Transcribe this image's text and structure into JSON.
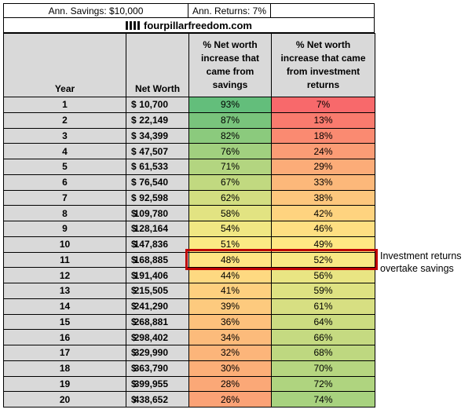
{
  "top_bar": {
    "savings_label": "Ann. Savings: $10,000",
    "returns_label": "Ann. Returns: 7%"
  },
  "brand": {
    "site": "fourpillarfreedom.com"
  },
  "colors": {
    "header_bg": "#D9D9D9",
    "grid": "#000000",
    "highlight_border": "#C00000"
  },
  "chart_data": {
    "type": "table",
    "header_labels": [
      "Ann. Savings: $10,000",
      "Ann. Returns: 7%"
    ],
    "source": "fourpillarfreedom.com",
    "currency_symbol": "$",
    "columns": [
      "Year",
      "Net Worth",
      "% Net worth increase that came from savings",
      "% Net worth increase that came from investment returns"
    ],
    "rows": [
      {
        "year": "1",
        "net_worth": "10,700",
        "savings_pct": 93,
        "returns_pct": 7
      },
      {
        "year": "2",
        "net_worth": "22,149",
        "savings_pct": 87,
        "returns_pct": 13
      },
      {
        "year": "3",
        "net_worth": "34,399",
        "savings_pct": 82,
        "returns_pct": 18
      },
      {
        "year": "4",
        "net_worth": "47,507",
        "savings_pct": 76,
        "returns_pct": 24
      },
      {
        "year": "5",
        "net_worth": "61,533",
        "savings_pct": 71,
        "returns_pct": 29
      },
      {
        "year": "6",
        "net_worth": "76,540",
        "savings_pct": 67,
        "returns_pct": 33
      },
      {
        "year": "7",
        "net_worth": "92,598",
        "savings_pct": 62,
        "returns_pct": 38
      },
      {
        "year": "8",
        "net_worth": "109,780",
        "savings_pct": 58,
        "returns_pct": 42
      },
      {
        "year": "9",
        "net_worth": "128,164",
        "savings_pct": 54,
        "returns_pct": 46
      },
      {
        "year": "10",
        "net_worth": "147,836",
        "savings_pct": 51,
        "returns_pct": 49
      },
      {
        "year": "11",
        "net_worth": "168,885",
        "savings_pct": 48,
        "returns_pct": 52
      },
      {
        "year": "12",
        "net_worth": "191,406",
        "savings_pct": 44,
        "returns_pct": 56
      },
      {
        "year": "13",
        "net_worth": "215,505",
        "savings_pct": 41,
        "returns_pct": 59
      },
      {
        "year": "14",
        "net_worth": "241,290",
        "savings_pct": 39,
        "returns_pct": 61
      },
      {
        "year": "15",
        "net_worth": "268,881",
        "savings_pct": 36,
        "returns_pct": 64
      },
      {
        "year": "16",
        "net_worth": "298,402",
        "savings_pct": 34,
        "returns_pct": 66
      },
      {
        "year": "17",
        "net_worth": "329,990",
        "savings_pct": 32,
        "returns_pct": 68
      },
      {
        "year": "18",
        "net_worth": "363,790",
        "savings_pct": 30,
        "returns_pct": 70
      },
      {
        "year": "19",
        "net_worth": "399,955",
        "savings_pct": 28,
        "returns_pct": 72
      },
      {
        "year": "20",
        "net_worth": "438,652",
        "savings_pct": 26,
        "returns_pct": 74
      }
    ],
    "color_scale": {
      "low_value": 7,
      "low_color": "#F8696B",
      "mid_value": 50,
      "mid_color": "#FFEB84",
      "high_value": 93,
      "high_color": "#63BE7B"
    },
    "highlight": {
      "row_year": "11",
      "note": "Investment returns overtake savings",
      "border_color": "#C00000"
    },
    "legend_position": "none",
    "grid": true
  }
}
